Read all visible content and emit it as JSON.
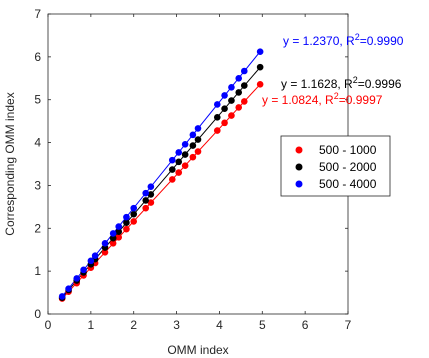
{
  "chart_data": {
    "type": "scatter",
    "title": "",
    "xlabel": "OMM index",
    "ylabel": "Corresponding OMM index",
    "xlim": [
      0,
      7
    ],
    "ylim": [
      0,
      7
    ],
    "xticks": [
      "0",
      "1",
      "2",
      "3",
      "4",
      "5",
      "6",
      "7"
    ],
    "yticks": [
      "0",
      "1",
      "2",
      "3",
      "4",
      "5",
      "6",
      "7"
    ],
    "grid": false,
    "legend_position": "right",
    "x": [
      0.33,
      0.48,
      0.67,
      0.83,
      1.0,
      1.1,
      1.33,
      1.52,
      1.65,
      1.83,
      2.0,
      2.28,
      2.4,
      2.9,
      3.05,
      3.2,
      3.38,
      3.5,
      3.95,
      4.12,
      4.28,
      4.45,
      4.58,
      4.95
    ],
    "series": [
      {
        "name": "500 - 1000",
        "color": "#ff0000",
        "fit_label": "y = 1.0824, R²=0.9997",
        "y": [
          0.36,
          0.52,
          0.72,
          0.9,
          1.08,
          1.19,
          1.44,
          1.65,
          1.79,
          1.98,
          2.16,
          2.47,
          2.6,
          3.14,
          3.3,
          3.46,
          3.66,
          3.79,
          4.28,
          4.46,
          4.63,
          4.82,
          4.96,
          5.36
        ]
      },
      {
        "name": "500 - 2000",
        "color": "#000000",
        "fit_label": "y = 1.1628, R²=0.9996",
        "y": [
          0.38,
          0.56,
          0.78,
          0.97,
          1.16,
          1.28,
          1.55,
          1.77,
          1.92,
          2.13,
          2.33,
          2.65,
          2.79,
          3.37,
          3.55,
          3.72,
          3.93,
          4.07,
          4.59,
          4.79,
          4.98,
          5.17,
          5.33,
          5.76
        ]
      },
      {
        "name": "500 - 4000",
        "color": "#0000ff",
        "fit_label": "y = 1.2370, R²=0.9990",
        "y": [
          0.41,
          0.59,
          0.83,
          1.03,
          1.24,
          1.36,
          1.65,
          1.88,
          2.04,
          2.26,
          2.47,
          2.82,
          2.97,
          3.59,
          3.77,
          3.96,
          4.18,
          4.33,
          4.89,
          5.1,
          5.29,
          5.5,
          5.67,
          6.12
        ]
      }
    ]
  }
}
